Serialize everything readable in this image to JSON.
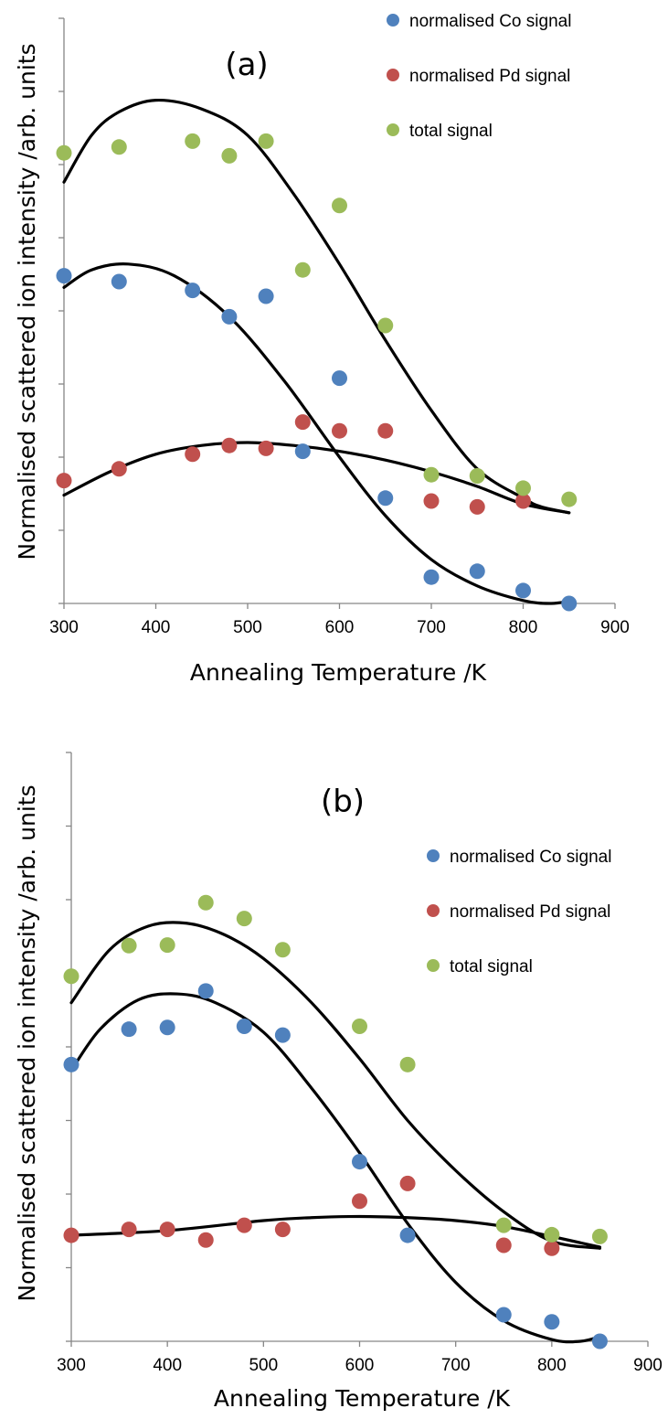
{
  "chart_data": [
    {
      "type": "scatter",
      "title": "(a)",
      "xlabel": "Annealing Temperature /K",
      "ylabel": "Normalised scattered ion intensity /arb. units",
      "xlim": [
        300,
        900
      ],
      "xticks": [
        300,
        400,
        500,
        600,
        700,
        800,
        900
      ],
      "ylim": [
        0,
        1
      ],
      "yticks_labeled": false,
      "grid": false,
      "legend_position": "top-right",
      "series": [
        {
          "name": "normalised Co signal",
          "color": "#4f81bd",
          "x": [
            300,
            360,
            440,
            480,
            520,
            560,
            600,
            650,
            700,
            750,
            800,
            850
          ],
          "y": [
            0.56,
            0.55,
            0.535,
            0.49,
            0.525,
            0.26,
            0.385,
            0.18,
            0.045,
            0.055,
            0.022,
            0.0
          ]
        },
        {
          "name": "normalised Pd signal",
          "color": "#c0504d",
          "x": [
            300,
            360,
            440,
            480,
            520,
            560,
            600,
            650,
            700,
            750,
            800
          ],
          "y": [
            0.21,
            0.23,
            0.255,
            0.27,
            0.265,
            0.31,
            0.295,
            0.295,
            0.175,
            0.165,
            0.175
          ]
        },
        {
          "name": "total signal",
          "color": "#9bbb59",
          "x": [
            300,
            360,
            440,
            480,
            520,
            560,
            600,
            650,
            700,
            750,
            800,
            850
          ],
          "y": [
            0.77,
            0.78,
            0.79,
            0.765,
            0.79,
            0.57,
            0.68,
            0.475,
            0.22,
            0.218,
            0.197,
            0.178
          ]
        }
      ],
      "trendlines": [
        {
          "x": [
            300,
            330,
            360,
            400,
            450,
            500,
            550,
            600,
            650,
            700,
            750,
            800,
            820,
            850
          ],
          "y": [
            0.72,
            0.8,
            0.84,
            0.86,
            0.845,
            0.8,
            0.7,
            0.58,
            0.45,
            0.33,
            0.23,
            0.18,
            0.165,
            0.155
          ]
        },
        {
          "x": [
            300,
            330,
            370,
            420,
            480,
            540,
            600,
            650,
            700,
            750,
            800,
            830,
            850
          ],
          "y": [
            0.54,
            0.57,
            0.58,
            0.56,
            0.49,
            0.38,
            0.25,
            0.15,
            0.075,
            0.03,
            0.005,
            0.0,
            0.004
          ]
        },
        {
          "x": [
            300,
            350,
            400,
            450,
            500,
            550,
            600,
            650,
            700,
            750,
            800,
            850
          ],
          "y": [
            0.185,
            0.225,
            0.255,
            0.27,
            0.275,
            0.27,
            0.26,
            0.245,
            0.225,
            0.2,
            0.17,
            0.155
          ]
        }
      ]
    },
    {
      "type": "scatter",
      "title": "(b)",
      "xlabel": "Annealing Temperature /K",
      "ylabel": "Normalised scattered ion intensity /arb. units",
      "xlim": [
        300,
        900
      ],
      "xticks": [
        300,
        400,
        500,
        600,
        700,
        800,
        900
      ],
      "ylim": [
        0,
        1
      ],
      "yticks_labeled": false,
      "grid": false,
      "legend_position": "top-right",
      "series": [
        {
          "name": "normalised Co signal",
          "color": "#4f81bd",
          "x": [
            300,
            360,
            400,
            440,
            480,
            520,
            600,
            650,
            750,
            800,
            850
          ],
          "y": [
            0.47,
            0.53,
            0.533,
            0.595,
            0.535,
            0.52,
            0.305,
            0.18,
            0.045,
            0.033,
            0.0
          ]
        },
        {
          "name": "normalised Pd signal",
          "color": "#c0504d",
          "x": [
            300,
            360,
            400,
            440,
            480,
            520,
            600,
            650,
            750,
            800
          ],
          "y": [
            0.18,
            0.19,
            0.19,
            0.172,
            0.197,
            0.19,
            0.238,
            0.268,
            0.163,
            0.158
          ]
        },
        {
          "name": "total signal",
          "color": "#9bbb59",
          "x": [
            300,
            360,
            400,
            440,
            480,
            520,
            600,
            650,
            750,
            800,
            850
          ],
          "y": [
            0.62,
            0.672,
            0.673,
            0.745,
            0.718,
            0.665,
            0.535,
            0.47,
            0.197,
            0.181,
            0.178
          ]
        }
      ],
      "trendlines": [
        {
          "x": [
            300,
            340,
            380,
            420,
            460,
            500,
            550,
            600,
            650,
            700,
            750,
            800,
            850
          ],
          "y": [
            0.575,
            0.665,
            0.705,
            0.71,
            0.69,
            0.65,
            0.575,
            0.48,
            0.375,
            0.29,
            0.22,
            0.17,
            0.158
          ]
        },
        {
          "x": [
            300,
            330,
            370,
            410,
            450,
            500,
            550,
            600,
            650,
            700,
            750,
            800,
            830,
            850
          ],
          "y": [
            0.46,
            0.53,
            0.58,
            0.59,
            0.575,
            0.525,
            0.43,
            0.32,
            0.2,
            0.1,
            0.035,
            0.003,
            0.0,
            0.008
          ]
        },
        {
          "x": [
            300,
            400,
            500,
            550,
            600,
            650,
            700,
            750,
            800,
            850
          ],
          "y": [
            0.18,
            0.188,
            0.205,
            0.21,
            0.212,
            0.21,
            0.205,
            0.195,
            0.178,
            0.16
          ]
        }
      ]
    }
  ]
}
